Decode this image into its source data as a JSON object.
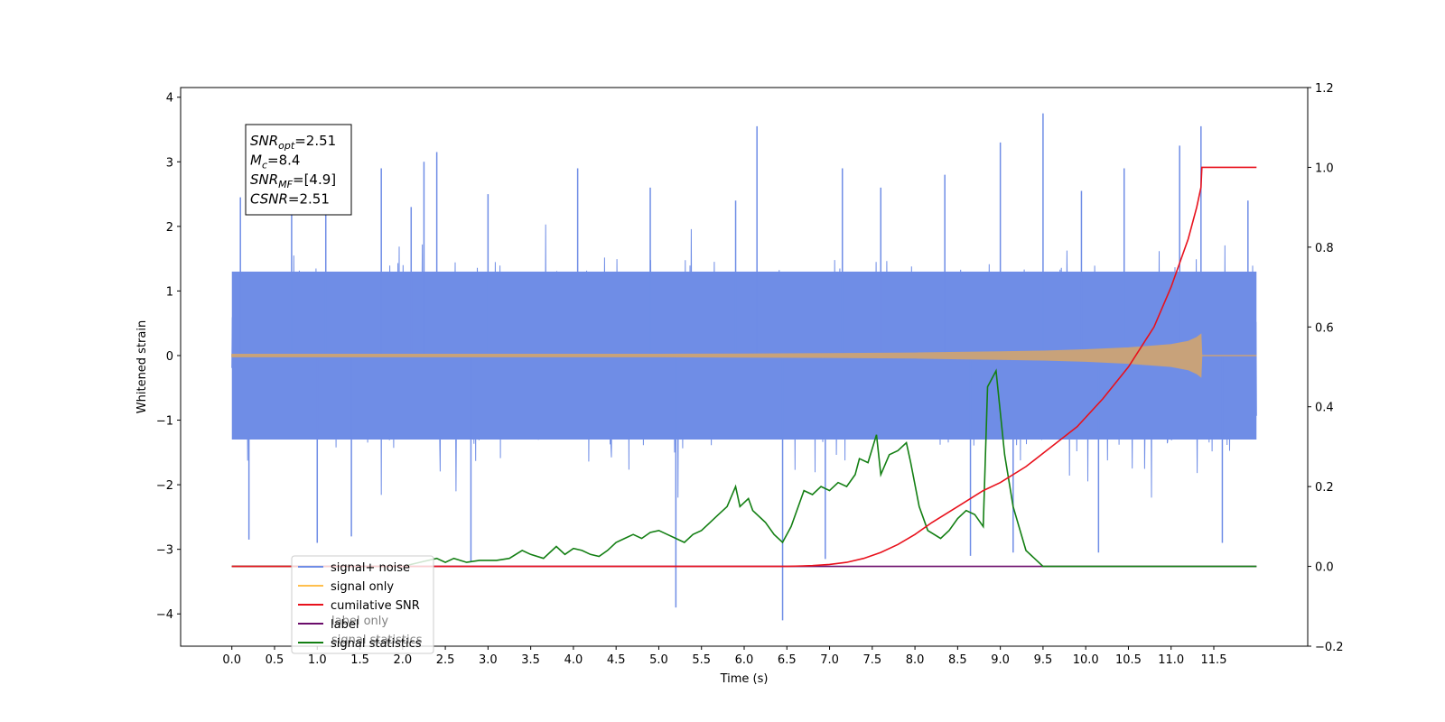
{
  "chart_data": {
    "type": "line",
    "title": "",
    "xlabel": "Time (s)",
    "ylabel_left": "Whitened strain",
    "ylabel_right": "",
    "xlim": [
      -0.6,
      12.6
    ],
    "ylim_left": [
      -4.5,
      4.15
    ],
    "ylim_right": [
      -0.2,
      1.2
    ],
    "x_ticks": [
      0.0,
      0.5,
      1.0,
      1.5,
      2.0,
      2.5,
      3.0,
      3.5,
      4.0,
      4.5,
      5.0,
      5.5,
      6.0,
      6.5,
      7.0,
      7.5,
      8.0,
      8.5,
      9.0,
      9.5,
      10.0,
      10.5,
      11.0,
      11.5
    ],
    "x_tick_labels": [
      "0.0",
      "0.5",
      "1.0",
      "1.5",
      "2.0",
      "2.5",
      "3.0",
      "3.5",
      "4.0",
      "4.5",
      "5.0",
      "5.5",
      "6.0",
      "6.5",
      "7.0",
      "7.5",
      "8.0",
      "8.5",
      "9.0",
      "9.5",
      "10.0",
      "10.5",
      "11.0",
      "11.5"
    ],
    "y_left_ticks": [
      -4,
      -3,
      -2,
      -1,
      0,
      1,
      2,
      3,
      4
    ],
    "y_left_tick_labels": [
      "−4",
      "−3",
      "−2",
      "−1",
      "0",
      "1",
      "2",
      "3",
      "4"
    ],
    "y_right_ticks": [
      -0.2,
      0.0,
      0.2,
      0.4,
      0.6,
      0.8,
      1.0,
      1.2
    ],
    "y_right_tick_labels": [
      "−0.2",
      "0.0",
      "0.2",
      "0.4",
      "0.6",
      "0.8",
      "1.0",
      "1.2"
    ],
    "grid": false,
    "legend_position": "lower-left",
    "series": [
      {
        "name": "signal+ noise",
        "axis": "left",
        "color": "#6f8de6",
        "x_range": [
          0.0,
          12.0
        ],
        "typical_band": [
          -1.3,
          1.3
        ],
        "spikes": [
          {
            "x": 0.1,
            "y": 2.45
          },
          {
            "x": 0.2,
            "y": -2.85
          },
          {
            "x": 0.7,
            "y": 2.6
          },
          {
            "x": 1.0,
            "y": -2.9
          },
          {
            "x": 1.1,
            "y": 2.9
          },
          {
            "x": 1.4,
            "y": -2.8
          },
          {
            "x": 1.75,
            "y": 2.9
          },
          {
            "x": 2.1,
            "y": 2.3
          },
          {
            "x": 2.25,
            "y": 3.0
          },
          {
            "x": 2.4,
            "y": 3.15
          },
          {
            "x": 2.8,
            "y": -3.2
          },
          {
            "x": 3.0,
            "y": 2.5
          },
          {
            "x": 4.05,
            "y": 2.9
          },
          {
            "x": 4.9,
            "y": 2.6
          },
          {
            "x": 5.2,
            "y": -3.9
          },
          {
            "x": 5.9,
            "y": 2.4
          },
          {
            "x": 6.15,
            "y": 3.55
          },
          {
            "x": 6.45,
            "y": -4.1
          },
          {
            "x": 6.95,
            "y": -3.15
          },
          {
            "x": 7.15,
            "y": 2.9
          },
          {
            "x": 7.6,
            "y": 2.6
          },
          {
            "x": 8.35,
            "y": 2.8
          },
          {
            "x": 8.65,
            "y": -3.1
          },
          {
            "x": 9.0,
            "y": 3.3
          },
          {
            "x": 9.15,
            "y": -3.05
          },
          {
            "x": 9.5,
            "y": 3.75
          },
          {
            "x": 9.95,
            "y": 2.55
          },
          {
            "x": 10.15,
            "y": -3.05
          },
          {
            "x": 10.45,
            "y": 2.9
          },
          {
            "x": 11.1,
            "y": 3.25
          },
          {
            "x": 11.35,
            "y": 3.55
          },
          {
            "x": 11.6,
            "y": -2.9
          },
          {
            "x": 11.9,
            "y": 2.4
          }
        ]
      },
      {
        "name": "signal only",
        "axis": "left",
        "color": "#c8a27a",
        "legend_color": "#ffbf4d",
        "x": [
          0.0,
          1.0,
          2.0,
          3.0,
          4.0,
          5.0,
          6.0,
          7.0,
          8.0,
          8.5,
          9.0,
          9.5,
          10.0,
          10.5,
          11.0,
          11.2,
          11.3,
          11.35,
          11.36
        ],
        "amplitude": [
          0.02,
          0.02,
          0.02,
          0.02,
          0.02,
          0.02,
          0.025,
          0.03,
          0.04,
          0.05,
          0.06,
          0.07,
          0.09,
          0.12,
          0.17,
          0.22,
          0.28,
          0.33,
          0.0
        ]
      },
      {
        "name": "cumilative SNR",
        "axis": "right",
        "color": "#e8111c",
        "x": [
          0.0,
          6.5,
          6.8,
          7.0,
          7.2,
          7.4,
          7.6,
          7.8,
          8.0,
          8.2,
          8.5,
          8.8,
          9.0,
          9.3,
          9.6,
          9.9,
          10.2,
          10.5,
          10.8,
          11.0,
          11.2,
          11.3,
          11.35,
          11.36,
          12.0
        ],
        "y": [
          0.0,
          0.0,
          0.002,
          0.005,
          0.01,
          0.02,
          0.035,
          0.055,
          0.08,
          0.11,
          0.15,
          0.19,
          0.21,
          0.25,
          0.3,
          0.35,
          0.42,
          0.5,
          0.6,
          0.7,
          0.82,
          0.9,
          0.95,
          1.0,
          1.0
        ]
      },
      {
        "name": "label",
        "axis": "right",
        "color": "#6a0c6a",
        "x": [
          0.0,
          12.0
        ],
        "y": [
          0.0,
          0.0
        ]
      },
      {
        "name": "signal statistics",
        "axis": "right",
        "color": "#137f13",
        "x": [
          0.0,
          2.0,
          2.2,
          2.4,
          2.5,
          2.6,
          2.75,
          2.9,
          3.0,
          3.1,
          3.25,
          3.4,
          3.5,
          3.65,
          3.8,
          3.9,
          4.0,
          4.1,
          4.2,
          4.3,
          4.4,
          4.5,
          4.6,
          4.7,
          4.8,
          4.9,
          5.0,
          5.1,
          5.2,
          5.3,
          5.4,
          5.5,
          5.6,
          5.7,
          5.8,
          5.9,
          5.95,
          6.05,
          6.1,
          6.2,
          6.25,
          6.35,
          6.45,
          6.55,
          6.7,
          6.8,
          6.9,
          7.0,
          7.1,
          7.2,
          7.3,
          7.35,
          7.45,
          7.55,
          7.6,
          7.7,
          7.8,
          7.9,
          7.95,
          8.05,
          8.15,
          8.3,
          8.4,
          8.5,
          8.6,
          8.7,
          8.8,
          8.85,
          8.95,
          9.05,
          9.15,
          9.3,
          9.5,
          12.0
        ],
        "y": [
          0.0,
          0.0,
          0.01,
          0.02,
          0.01,
          0.02,
          0.01,
          0.015,
          0.015,
          0.015,
          0.02,
          0.04,
          0.03,
          0.02,
          0.05,
          0.03,
          0.045,
          0.04,
          0.03,
          0.025,
          0.04,
          0.06,
          0.07,
          0.08,
          0.07,
          0.085,
          0.09,
          0.08,
          0.07,
          0.06,
          0.08,
          0.09,
          0.11,
          0.13,
          0.15,
          0.2,
          0.15,
          0.17,
          0.14,
          0.12,
          0.11,
          0.08,
          0.06,
          0.1,
          0.19,
          0.18,
          0.2,
          0.19,
          0.21,
          0.2,
          0.23,
          0.27,
          0.26,
          0.33,
          0.23,
          0.28,
          0.29,
          0.31,
          0.26,
          0.15,
          0.09,
          0.07,
          0.09,
          0.12,
          0.14,
          0.13,
          0.1,
          0.45,
          0.49,
          0.28,
          0.15,
          0.04,
          0.0,
          0.0
        ]
      }
    ],
    "legend_entries": [
      {
        "label": "signal+ noise",
        "color": "#6f8de6"
      },
      {
        "label": "signal only",
        "color": "#ffbf4d"
      },
      {
        "label": "cumilative SNR",
        "color": "#e8111c"
      },
      {
        "label": "label",
        "color": "#6a0c6a"
      },
      {
        "label": "signal statistics",
        "color": "#137f13"
      }
    ],
    "legend_ghost_labels": [
      "label only",
      "signal statistics"
    ],
    "annotation_box": {
      "lines": [
        {
          "main": "SNR",
          "sub": "opt",
          "rest": "=2.51"
        },
        {
          "main": "M",
          "sub": "c",
          "rest": "=8.4"
        },
        {
          "main": "SNR",
          "sub": "MF",
          "rest": "=[4.9]"
        },
        {
          "main": "CSNR",
          "sub": "",
          "rest": "=2.51"
        }
      ]
    }
  }
}
